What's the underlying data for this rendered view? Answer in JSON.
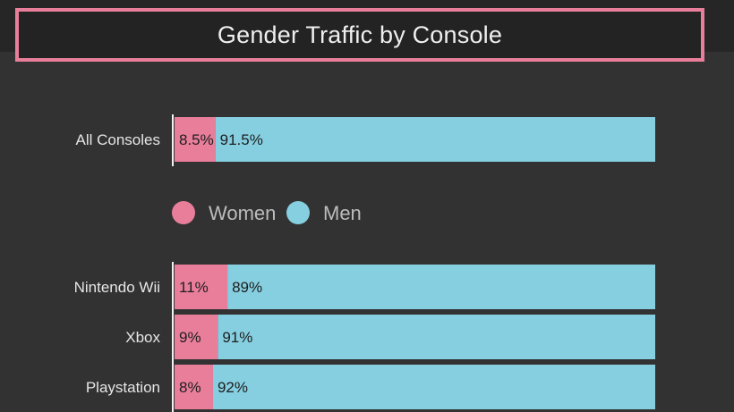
{
  "title": "Gender Traffic by Console",
  "colors": {
    "women": "#e97e9b",
    "men": "#85cfe0",
    "background": "#323232",
    "accent": "#e97e9b"
  },
  "legend": {
    "items": [
      {
        "name": "Women",
        "color": "#e97e9b"
      },
      {
        "name": "Men",
        "color": "#85cfe0"
      }
    ]
  },
  "chart_data": [
    {
      "type": "bar",
      "orientation": "horizontal",
      "stacked": true,
      "categories": [
        "All Consoles"
      ],
      "series": [
        {
          "name": "Women",
          "values": [
            8.5
          ],
          "labels": [
            "8.5%"
          ]
        },
        {
          "name": "Men",
          "values": [
            91.5
          ],
          "labels": [
            "91.5%"
          ]
        }
      ],
      "xlim": [
        0,
        100
      ]
    },
    {
      "type": "bar",
      "orientation": "horizontal",
      "stacked": true,
      "categories": [
        "Nintendo Wii",
        "Xbox",
        "Playstation"
      ],
      "series": [
        {
          "name": "Women",
          "values": [
            11,
            9,
            8
          ],
          "labels": [
            "11%",
            "9%",
            "8%"
          ]
        },
        {
          "name": "Men",
          "values": [
            89,
            91,
            92
          ],
          "labels": [
            "89%",
            "91%",
            "92%"
          ]
        }
      ],
      "xlim": [
        0,
        100
      ],
      "legend": "above"
    }
  ]
}
